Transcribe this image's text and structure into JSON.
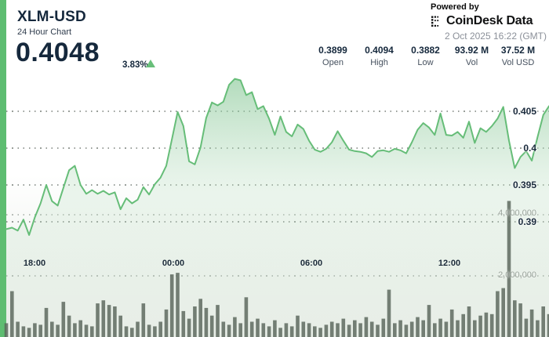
{
  "header": {
    "symbol": "XLM-USD",
    "subtitle": "24 Hour Chart",
    "price": "0.4048",
    "change_percent": "3.83%",
    "change_direction": "up",
    "stats": [
      {
        "value": "0.3899",
        "label": "Open"
      },
      {
        "value": "0.4094",
        "label": "High"
      },
      {
        "value": "0.3882",
        "label": "Low"
      },
      {
        "value": "93.92 M",
        "label": "Vol"
      },
      {
        "value": "37.52 M",
        "label": "Vol USD"
      }
    ],
    "powered_by": "Powered by",
    "provider": "CoinDesk Data",
    "timestamp": "2 Oct 2025 16:22 (GMT)"
  },
  "colors": {
    "accent_green": "#5ebd71",
    "line_green": "#66bd78",
    "fill_green_top": "#7fc48f",
    "fill_green_mid": "#bfe0c6",
    "volume_bar": "#5a665b",
    "title_navy": "#15283c",
    "muted_gray": "#8b9099",
    "axis_gray": "#9aa39b"
  },
  "chart_data": {
    "type": "area",
    "title": "XLM-USD 24 Hour Chart",
    "interval_minutes": 15,
    "grid": "dotted-horizontal",
    "legend": "none",
    "x_time_labels": [
      "18:00",
      "00:00",
      "06:00",
      "12:00"
    ],
    "price_ticks": [
      {
        "value": 0.405,
        "label": "0.405"
      },
      {
        "value": 0.4,
        "label": "0.4"
      },
      {
        "value": 0.395,
        "label": "0.395"
      },
      {
        "value": 0.39,
        "label": "0.39"
      }
    ],
    "volume_ticks": [
      {
        "value_m": 4.0,
        "label": "4,000,000"
      },
      {
        "value_m": 2.0,
        "label": "2,000,000"
      }
    ],
    "price_ylim": [
      0.3875,
      0.4105
    ],
    "open": 0.3899,
    "high": 0.4094,
    "low": 0.3882,
    "last": 0.4048,
    "prices": [
      0.389,
      0.3892,
      0.3888,
      0.3903,
      0.3882,
      0.3906,
      0.3925,
      0.395,
      0.3928,
      0.3922,
      0.3946,
      0.397,
      0.3976,
      0.395,
      0.3938,
      0.3943,
      0.3938,
      0.3942,
      0.3937,
      0.394,
      0.3917,
      0.3932,
      0.3925,
      0.393,
      0.3947,
      0.3937,
      0.3951,
      0.396,
      0.3976,
      0.4012,
      0.4049,
      0.403,
      0.3982,
      0.3978,
      0.4001,
      0.4041,
      0.4062,
      0.4058,
      0.4063,
      0.4086,
      0.4094,
      0.4092,
      0.4072,
      0.4076,
      0.4053,
      0.4057,
      0.404,
      0.4018,
      0.4043,
      0.4022,
      0.4016,
      0.4032,
      0.4026,
      0.401,
      0.3998,
      0.3995,
      0.3999,
      0.4008,
      0.4023,
      0.401,
      0.3998,
      0.3996,
      0.3995,
      0.3993,
      0.3988,
      0.3996,
      0.3997,
      0.3995,
      0.3999,
      0.3997,
      0.3993,
      0.4008,
      0.4025,
      0.4034,
      0.4028,
      0.4018,
      0.4047,
      0.4018,
      0.4017,
      0.4022,
      0.4014,
      0.4036,
      0.4007,
      0.4027,
      0.4022,
      0.403,
      0.404,
      0.4056,
      0.401,
      0.3973,
      0.3988,
      0.3996,
      0.3983,
      0.4015,
      0.4045,
      0.4057
    ],
    "volumes_millions": [
      0.45,
      1.5,
      0.5,
      0.35,
      0.3,
      0.45,
      0.4,
      0.95,
      0.5,
      0.4,
      1.15,
      0.7,
      0.45,
      0.55,
      0.4,
      0.35,
      1.1,
      1.2,
      1.05,
      1.0,
      0.7,
      0.35,
      0.3,
      0.5,
      1.1,
      0.4,
      0.35,
      0.5,
      0.9,
      2.05,
      2.1,
      0.85,
      0.6,
      1.0,
      1.25,
      0.95,
      0.7,
      1.05,
      0.5,
      0.4,
      0.65,
      0.45,
      1.3,
      0.5,
      0.6,
      0.45,
      0.35,
      0.55,
      0.3,
      0.45,
      0.35,
      0.7,
      0.5,
      0.45,
      0.35,
      0.3,
      0.4,
      0.5,
      0.45,
      0.6,
      0.4,
      0.55,
      0.45,
      0.65,
      0.5,
      0.4,
      0.6,
      1.55,
      0.45,
      0.55,
      0.4,
      0.5,
      0.65,
      0.55,
      1.05,
      0.45,
      0.6,
      0.5,
      0.9,
      0.55,
      0.75,
      1.0,
      0.55,
      0.7,
      0.8,
      0.75,
      1.5,
      1.6,
      4.45,
      1.2,
      1.1,
      0.6,
      0.9,
      0.55,
      1.0,
      0.75
    ]
  }
}
